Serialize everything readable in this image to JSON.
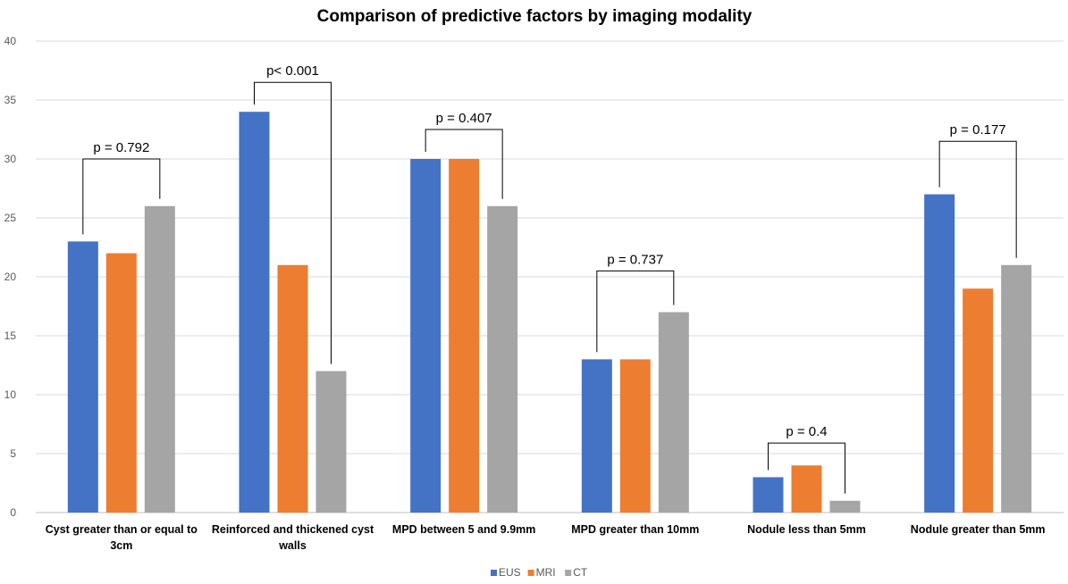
{
  "chart_data": {
    "type": "bar",
    "title": "Comparison of predictive factors by imaging modality",
    "xlabel": "",
    "ylabel": "",
    "ylim": [
      0,
      40
    ],
    "yticks": [
      0,
      5,
      10,
      15,
      20,
      25,
      30,
      35,
      40
    ],
    "grid": true,
    "legend_position": "bottom",
    "categories": [
      [
        "Cyst greater than or equal to",
        "3cm"
      ],
      [
        "Reinforced and thickened cyst",
        "walls"
      ],
      [
        "MPD between 5 and 9.9mm"
      ],
      [
        "MPD greater than 10mm"
      ],
      [
        "Nodule less than 5mm"
      ],
      [
        "Nodule greater than 5mm"
      ]
    ],
    "series": [
      {
        "name": "EUS",
        "color": "#4472C4",
        "values": [
          23,
          34,
          30,
          13,
          3,
          27
        ]
      },
      {
        "name": "MRI",
        "color": "#ED7D31",
        "values": [
          22,
          21,
          30,
          13,
          4,
          19
        ]
      },
      {
        "name": "CT",
        "color": "#A5A5A5",
        "values": [
          26,
          12,
          26,
          17,
          1,
          21
        ]
      }
    ],
    "annotations": [
      {
        "category": 0,
        "text": "p = 0.792",
        "level": 30.0
      },
      {
        "category": 1,
        "text": "p< 0.001",
        "level": 36.5
      },
      {
        "category": 2,
        "text": "p = 0.407",
        "level": 32.5
      },
      {
        "category": 3,
        "text": "p = 0.737",
        "level": 20.5
      },
      {
        "category": 4,
        "text": "p = 0.4",
        "level": 5.9
      },
      {
        "category": 5,
        "text": "p = 0.177",
        "level": 31.5
      }
    ]
  }
}
